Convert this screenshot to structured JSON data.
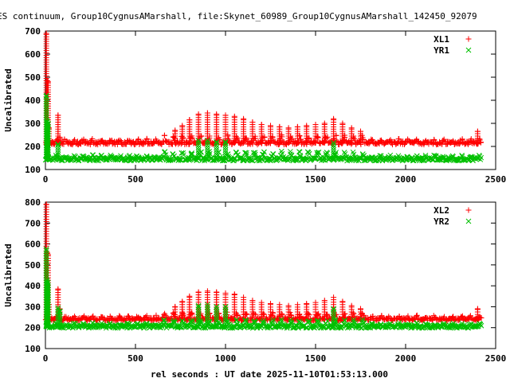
{
  "title": "ES continuum, Group10CygnusAMarshall, file:Skynet_60989_Group10CygnusAMarshall_142450_92079",
  "xlabel": "rel seconds : UT date 2025-11-10T01:53:13.000",
  "colors": {
    "series_a": "#ff0000",
    "series_b": "#00c000"
  },
  "chart_data": [
    {
      "type": "scatter",
      "ylabel": "Uncalibrated",
      "xlim": [
        0,
        2500
      ],
      "ylim": [
        100,
        700
      ],
      "x_ticks": [
        0,
        500,
        1000,
        1500,
        2000,
        2500
      ],
      "y_ticks": [
        100,
        200,
        300,
        400,
        500,
        600,
        700
      ],
      "legend_position": "top-right",
      "grid": false,
      "series": [
        {
          "name": "XL1",
          "marker": "plus",
          "baseline": 215,
          "spikes": [
            {
              "x": 5,
              "y": 690
            },
            {
              "x": 10,
              "y": 485
            },
            {
              "x": 15,
              "y": 480
            },
            {
              "x": 20,
              "y": 280
            },
            {
              "x": 70,
              "y": 335
            },
            {
              "x": 80,
              "y": 240
            },
            {
              "x": 720,
              "y": 270
            },
            {
              "x": 760,
              "y": 290
            },
            {
              "x": 800,
              "y": 315
            },
            {
              "x": 850,
              "y": 340
            },
            {
              "x": 900,
              "y": 345
            },
            {
              "x": 950,
              "y": 340
            },
            {
              "x": 1000,
              "y": 335
            },
            {
              "x": 1050,
              "y": 330
            },
            {
              "x": 1100,
              "y": 320
            },
            {
              "x": 1150,
              "y": 305
            },
            {
              "x": 1200,
              "y": 295
            },
            {
              "x": 1250,
              "y": 290
            },
            {
              "x": 1300,
              "y": 285
            },
            {
              "x": 1350,
              "y": 280
            },
            {
              "x": 1400,
              "y": 285
            },
            {
              "x": 1450,
              "y": 290
            },
            {
              "x": 1500,
              "y": 295
            },
            {
              "x": 1550,
              "y": 300
            },
            {
              "x": 1600,
              "y": 320
            },
            {
              "x": 1650,
              "y": 300
            },
            {
              "x": 1700,
              "y": 280
            },
            {
              "x": 1750,
              "y": 265
            },
            {
              "x": 2400,
              "y": 265
            }
          ]
        },
        {
          "name": "YR1",
          "marker": "cross",
          "baseline": 145,
          "spikes": [
            {
              "x": 5,
              "y": 420
            },
            {
              "x": 10,
              "y": 310
            },
            {
              "x": 15,
              "y": 300
            },
            {
              "x": 70,
              "y": 210
            },
            {
              "x": 850,
              "y": 225
            },
            {
              "x": 900,
              "y": 225
            },
            {
              "x": 950,
              "y": 220
            },
            {
              "x": 1000,
              "y": 220
            },
            {
              "x": 1600,
              "y": 215
            }
          ]
        }
      ]
    },
    {
      "type": "scatter",
      "ylabel": "Uncalibrated",
      "xlim": [
        0,
        2500
      ],
      "ylim": [
        100,
        800
      ],
      "x_ticks": [
        0,
        500,
        1000,
        1500,
        2000,
        2500
      ],
      "y_ticks": [
        100,
        200,
        300,
        400,
        500,
        600,
        700,
        800
      ],
      "legend_position": "top-right",
      "grid": false,
      "series": [
        {
          "name": "XL2",
          "marker": "plus",
          "baseline": 240,
          "spikes": [
            {
              "x": 5,
              "y": 790
            },
            {
              "x": 10,
              "y": 560
            },
            {
              "x": 15,
              "y": 550
            },
            {
              "x": 20,
              "y": 310
            },
            {
              "x": 70,
              "y": 385
            },
            {
              "x": 80,
              "y": 290
            },
            {
              "x": 720,
              "y": 300
            },
            {
              "x": 760,
              "y": 325
            },
            {
              "x": 800,
              "y": 350
            },
            {
              "x": 850,
              "y": 370
            },
            {
              "x": 900,
              "y": 375
            },
            {
              "x": 950,
              "y": 370
            },
            {
              "x": 1000,
              "y": 365
            },
            {
              "x": 1050,
              "y": 360
            },
            {
              "x": 1100,
              "y": 345
            },
            {
              "x": 1150,
              "y": 330
            },
            {
              "x": 1200,
              "y": 320
            },
            {
              "x": 1250,
              "y": 315
            },
            {
              "x": 1300,
              "y": 310
            },
            {
              "x": 1350,
              "y": 305
            },
            {
              "x": 1400,
              "y": 310
            },
            {
              "x": 1450,
              "y": 315
            },
            {
              "x": 1500,
              "y": 320
            },
            {
              "x": 1550,
              "y": 330
            },
            {
              "x": 1600,
              "y": 345
            },
            {
              "x": 1650,
              "y": 325
            },
            {
              "x": 1700,
              "y": 305
            },
            {
              "x": 1750,
              "y": 290
            },
            {
              "x": 2400,
              "y": 290
            }
          ]
        },
        {
          "name": "YR2",
          "marker": "cross",
          "baseline": 205,
          "spikes": [
            {
              "x": 5,
              "y": 575
            },
            {
              "x": 10,
              "y": 425
            },
            {
              "x": 15,
              "y": 415
            },
            {
              "x": 70,
              "y": 295
            },
            {
              "x": 80,
              "y": 280
            },
            {
              "x": 850,
              "y": 305
            },
            {
              "x": 900,
              "y": 310
            },
            {
              "x": 950,
              "y": 300
            },
            {
              "x": 1000,
              "y": 300
            },
            {
              "x": 1600,
              "y": 290
            }
          ]
        }
      ]
    }
  ]
}
